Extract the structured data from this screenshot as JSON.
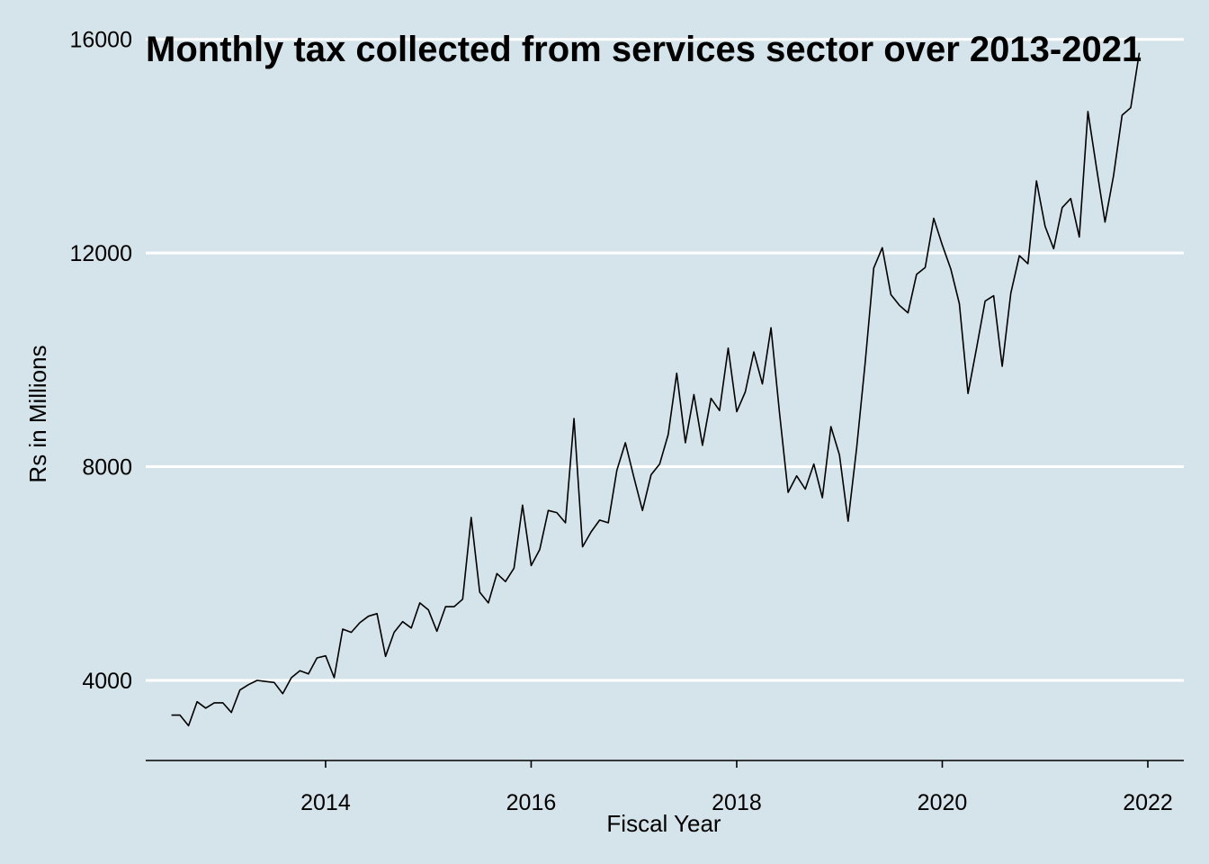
{
  "colors": {
    "background": "#d5e4eb",
    "grid": "#ffffff",
    "line": "#000000"
  },
  "chart_data": {
    "type": "line",
    "title": "Monthly tax collected from services sector over 2013-2021",
    "xlabel": "Fiscal Year",
    "ylabel": "Rs in Millions",
    "xlim": [
      2012.25,
      2022.35
    ],
    "ylim": [
      2500,
      16400
    ],
    "x_ticks": [
      2014,
      2016,
      2018,
      2020,
      2022
    ],
    "x_tick_labels": [
      "2014",
      "2016",
      "2018",
      "2020",
      "2022"
    ],
    "y_ticks": [
      4000,
      8000,
      12000,
      16000
    ],
    "y_tick_labels": [
      "4000",
      "8000",
      "12000",
      "16000"
    ],
    "grid": "horizontal",
    "start": {
      "year": 2012,
      "month": 7
    },
    "series": [
      {
        "values": [
          3350,
          3350,
          3150,
          3600,
          3480,
          3580,
          3580,
          3400,
          3820,
          3920,
          4000,
          3980,
          3960,
          3750,
          4050,
          4180,
          4120,
          4420,
          4460,
          4050,
          4960,
          4900,
          5080,
          5200,
          5250,
          4450,
          4900,
          5100,
          4980,
          5450,
          5320,
          4920,
          5380,
          5380,
          5520,
          7050,
          5650,
          5450,
          6000,
          5850,
          6100,
          7280,
          6150,
          6450,
          7180,
          7140,
          6950,
          8900,
          6500,
          6780,
          7000,
          6950,
          7930,
          8450,
          7800,
          7180,
          7850,
          8050,
          8600,
          9750,
          8450,
          9350,
          8400,
          9280,
          9050,
          10220,
          9030,
          9400,
          10150,
          9550,
          10600,
          9000,
          7520,
          7830,
          7580,
          8050,
          7420,
          8750,
          8220,
          6980,
          8350,
          9950,
          11720,
          12100,
          11220,
          11020,
          10880,
          11600,
          11730,
          12650,
          12150,
          11700,
          11050,
          9370,
          10220,
          11100,
          11200,
          9880,
          11250,
          11950,
          11800,
          13350,
          12500,
          12080,
          12850,
          13020,
          12300,
          14650,
          13600,
          12580,
          13450,
          14580,
          14720,
          15750
        ]
      }
    ]
  }
}
